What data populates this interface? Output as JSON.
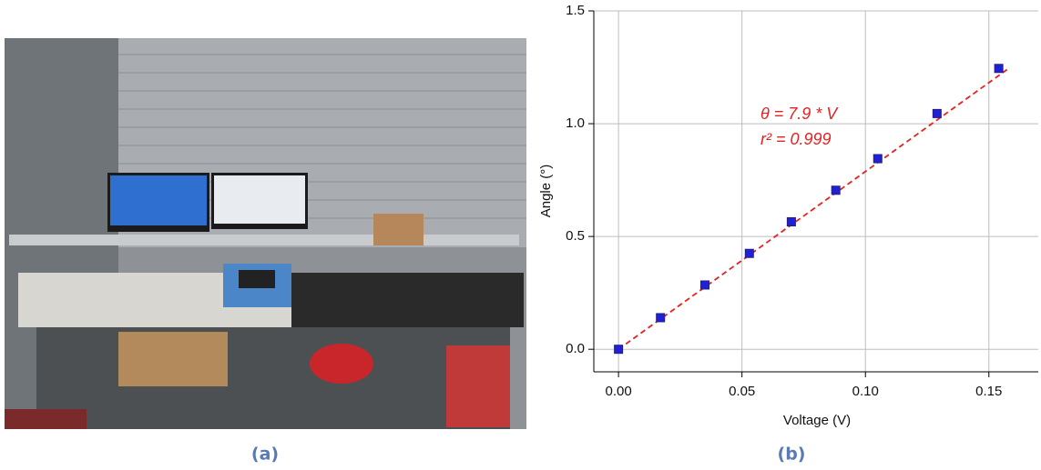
{
  "figure": {
    "captions": [
      "(a)",
      "(b)"
    ]
  },
  "chart_data": {
    "type": "scatter",
    "x_label": "Voltage (V)",
    "y_label": "Angle (°)",
    "annotations": [
      "θ = 7.9 * V",
      "r² = 0.999"
    ],
    "x": [
      0,
      0.017,
      0.035,
      0.053,
      0.07,
      0.088,
      0.105,
      0.129,
      0.154
    ],
    "values": [
      0,
      0.14,
      0.285,
      0.425,
      0.565,
      0.705,
      0.845,
      1.045,
      1.245
    ],
    "color": "#2020d8",
    "fit_line": {
      "x": [
        0,
        0.158
      ],
      "values": [
        0,
        1.245
      ],
      "color": "#e82020",
      "style": "dashed"
    },
    "xlim": [
      -0.01,
      0.17
    ],
    "ylim": [
      -0.1,
      1.5
    ],
    "xticks": [
      {
        "value": 0,
        "label": "0.00"
      },
      0.05,
      {
        "value": 0.1,
        "label": "0.10"
      },
      0.15
    ],
    "yticks": [
      {
        "value": 0,
        "label": "0.0"
      },
      0.5,
      {
        "value": 1,
        "label": "1.0"
      },
      1.5
    ],
    "grid": true
  }
}
